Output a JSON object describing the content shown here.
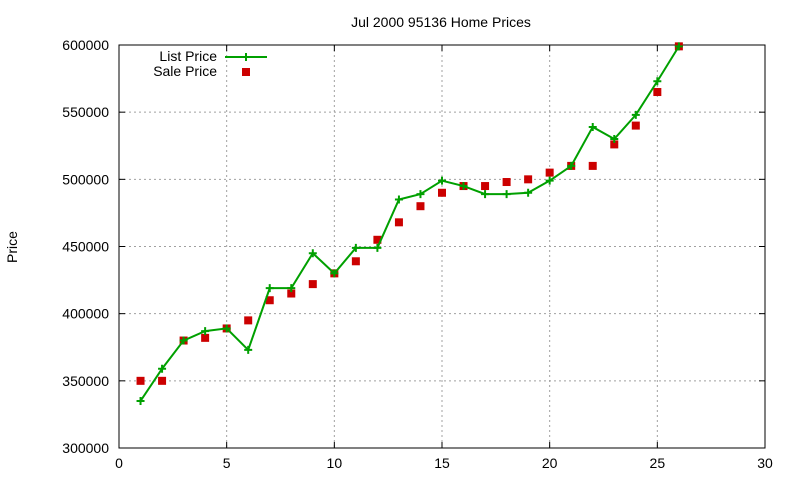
{
  "colors": {
    "list_price": "#00a000",
    "sale_price": "#cc0000",
    "grid": "#a0a0a0",
    "axis": "#000000"
  },
  "chart_data": {
    "type": "line",
    "title": "Jul 2000 95136 Home Prices",
    "xlabel": "",
    "ylabel": "Price",
    "xlim": [
      0,
      30
    ],
    "ylim": [
      300000,
      600000
    ],
    "x_ticks": [
      0,
      5,
      10,
      15,
      20,
      25,
      30
    ],
    "y_ticks": [
      300000,
      350000,
      400000,
      450000,
      500000,
      550000,
      600000
    ],
    "grid": true,
    "legend_position": "top-left",
    "series": [
      {
        "name": "List Price",
        "style": "line-with-plus-markers",
        "x": [
          1,
          2,
          3,
          4,
          5,
          6,
          7,
          8,
          9,
          10,
          11,
          12,
          13,
          14,
          15,
          16,
          17,
          18,
          19,
          20,
          21,
          22,
          23,
          24,
          25,
          26
        ],
        "y": [
          335000,
          359000,
          380000,
          387000,
          389000,
          373000,
          419000,
          419000,
          445000,
          430000,
          449000,
          449000,
          485000,
          489000,
          499000,
          495000,
          489000,
          489000,
          490000,
          499000,
          510000,
          539000,
          530000,
          548000,
          573000,
          599000
        ]
      },
      {
        "name": "Sale Price",
        "style": "square-markers",
        "x": [
          1,
          2,
          3,
          4,
          5,
          6,
          7,
          8,
          9,
          10,
          11,
          12,
          13,
          14,
          15,
          16,
          17,
          18,
          19,
          20,
          21,
          22,
          23,
          24,
          25,
          26
        ],
        "y": [
          350000,
          350000,
          380000,
          382000,
          389000,
          395000,
          410000,
          415000,
          422000,
          430000,
          439000,
          455000,
          468000,
          480000,
          490000,
          495000,
          495000,
          498000,
          500000,
          505000,
          510000,
          510000,
          526000,
          540000,
          565000,
          599000
        ]
      }
    ]
  }
}
